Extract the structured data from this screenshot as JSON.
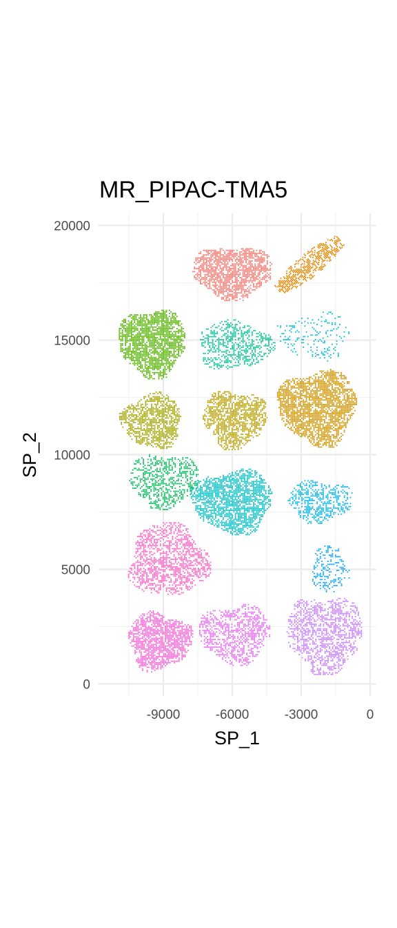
{
  "chart_data": {
    "type": "scatter",
    "title": "MR_PIPAC-TMA5",
    "xlabel": "SP_1",
    "ylabel": "SP_2",
    "xlim": [
      -10500,
      300
    ],
    "ylim": [
      -450,
      20550
    ],
    "x_ticks": [
      -9000,
      -6000,
      -3000,
      0
    ],
    "x_tick_labels": [
      "-9000",
      "-6000",
      "-3000",
      "0"
    ],
    "y_ticks": [
      0,
      5000,
      10000,
      15000,
      20000
    ],
    "y_tick_labels": [
      "0",
      "5000",
      "10000",
      "15000",
      "20000"
    ],
    "grid": true,
    "legend": "none",
    "theme": "minimal",
    "series": [
      {
        "color": "#F8766D",
        "shape": "blob",
        "center": [
          -6000,
          18000
        ],
        "radius": [
          1750,
          1150
        ],
        "density": 0.9,
        "seed": 11
      },
      {
        "color": "#E58700",
        "shape": "diagonal",
        "from": [
          -4000,
          17200
        ],
        "to": [
          -1300,
          19400
        ],
        "width": 500,
        "density": 0.7,
        "seed": 12
      },
      {
        "color": "#53B400",
        "shape": "blob",
        "center": [
          -9500,
          14900
        ],
        "radius": [
          1450,
          1500
        ],
        "density": 0.95,
        "seed": 13
      },
      {
        "color": "#00BC56",
        "shape": "blob",
        "center": [
          -9000,
          8900
        ],
        "radius": [
          1500,
          1200
        ],
        "density": 0.55,
        "seed": 14
      },
      {
        "color": "#00C094",
        "shape": "blob",
        "center": [
          -5900,
          14800
        ],
        "radius": [
          1650,
          1050
        ],
        "density": 0.55,
        "seed": 15
      },
      {
        "color": "#00BFC4",
        "shape": "blob",
        "center": [
          -6000,
          8000
        ],
        "radius": [
          1750,
          1400
        ],
        "density": 0.9,
        "seed": 16
      },
      {
        "color": "#00BCD8",
        "shape": "blob",
        "center": [
          -2400,
          15200
        ],
        "radius": [
          1600,
          1050
        ],
        "density": 0.18,
        "seed": 17
      },
      {
        "color": "#00B6EB",
        "shape": "blob",
        "center": [
          -2200,
          8000
        ],
        "radius": [
          1400,
          900
        ],
        "density": 0.6,
        "seed": 18
      },
      {
        "color": "#06A4FF",
        "shape": "blob",
        "center": [
          -1800,
          5000
        ],
        "radius": [
          800,
          1050
        ],
        "density": 0.4,
        "seed": 19
      },
      {
        "color": "#A3A500",
        "shape": "blob",
        "center": [
          -9500,
          11500
        ],
        "radius": [
          1300,
          1200
        ],
        "density": 0.8,
        "seed": 20
      },
      {
        "color": "#B9A000",
        "shape": "blob",
        "center": [
          -5900,
          11600
        ],
        "radius": [
          1400,
          1250
        ],
        "density": 0.85,
        "seed": 21
      },
      {
        "color": "#D09400",
        "shape": "blob",
        "center": [
          -2300,
          12100
        ],
        "radius": [
          1700,
          1650
        ],
        "density": 0.95,
        "seed": 22
      },
      {
        "color": "#FF61C3",
        "shape": "blob",
        "center": [
          -8800,
          5400
        ],
        "radius": [
          1750,
          1600
        ],
        "density": 0.65,
        "seed": 23
      },
      {
        "color": "#FB61D7",
        "shape": "blob",
        "center": [
          -9200,
          1900
        ],
        "radius": [
          1400,
          1250
        ],
        "density": 0.9,
        "seed": 24
      },
      {
        "color": "#E76BF3",
        "shape": "blob",
        "center": [
          -5900,
          2200
        ],
        "radius": [
          1550,
          1300
        ],
        "density": 0.65,
        "seed": 25
      },
      {
        "color": "#C77CFF",
        "shape": "blob",
        "center": [
          -2000,
          2200
        ],
        "radius": [
          1650,
          1700
        ],
        "density": 0.65,
        "seed": 26
      }
    ]
  }
}
